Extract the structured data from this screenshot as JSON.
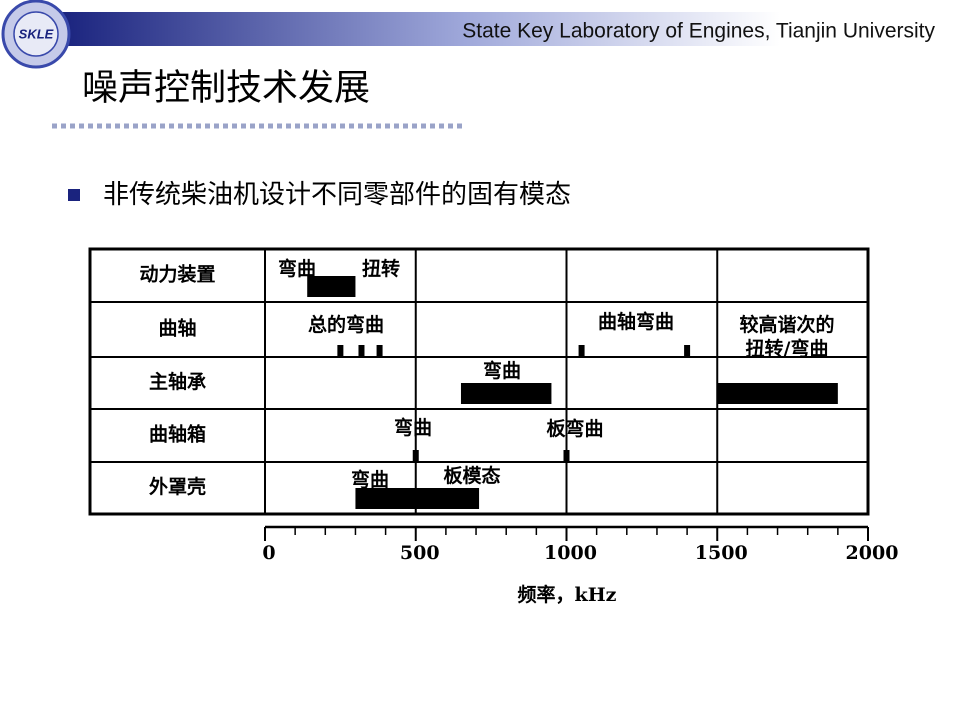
{
  "header": {
    "org": "State Key Laboratory of Engines, Tianjin   University",
    "logo": "SKLE"
  },
  "title": "噪声控制技术发展",
  "bullet": "非传统柴油机设计不同零部件的固有模态",
  "chart_data": {
    "type": "range",
    "xlabel": "频率，kHz",
    "xlim": [
      0,
      2000
    ],
    "xticks": [
      0,
      500,
      1000,
      1500,
      2000
    ],
    "xminorticks": [
      100,
      200,
      300,
      400,
      600,
      700,
      800,
      900,
      1100,
      1200,
      1300,
      1400,
      1600,
      1700,
      1800,
      1900
    ],
    "grid": true,
    "color": "#000000",
    "rows": [
      {
        "name": "动力装置",
        "items": [
          {
            "labels": [
              "弯曲",
              "扭转"
            ],
            "start": 140,
            "end": 300
          }
        ]
      },
      {
        "name": "曲轴",
        "items": [
          {
            "labels": [
              "总的弯曲"
            ],
            "points": [
              250,
              320,
              380
            ]
          },
          {
            "labels": [
              "曲轴弯曲"
            ],
            "points": [
              1050,
              1400
            ]
          }
        ]
      },
      {
        "name": "主轴承",
        "items": [
          {
            "labels": [
              "弯曲"
            ],
            "start": 650,
            "end": 950
          },
          {
            "labels": [
              "较高谐次的",
              "扭转/弯曲"
            ],
            "start": 1500,
            "end": 1900
          }
        ]
      },
      {
        "name": "曲轴箱",
        "items": [
          {
            "labels": [
              "弯曲"
            ],
            "points": [
              500
            ]
          },
          {
            "labels": [
              "板弯曲"
            ],
            "points": [
              1000
            ]
          }
        ]
      },
      {
        "name": "外罩壳",
        "items": [
          {
            "labels": [
              "弯曲",
              "板模态"
            ],
            "start": 300,
            "end": 710
          }
        ]
      }
    ]
  }
}
